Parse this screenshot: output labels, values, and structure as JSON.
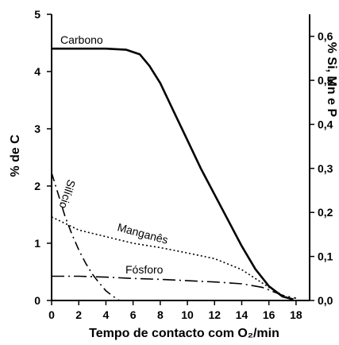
{
  "chart_data": {
    "type": "line",
    "xlabel": "Tempo de contacto com O₂/min",
    "ylabel_left": "% de C",
    "ylabel_right": "% Si, Mn e P",
    "xlim": [
      0,
      19
    ],
    "ylim_left": [
      0,
      5
    ],
    "ylim_right": [
      0,
      0.65
    ],
    "x_ticks": [
      "0",
      "2",
      "4",
      "6",
      "8",
      "10",
      "12",
      "14",
      "16",
      "18"
    ],
    "y_left_ticks": [
      "0",
      "1",
      "2",
      "3",
      "4",
      "5"
    ],
    "y_right_ticks": [
      "0,0",
      "0,1",
      "0,2",
      "0,3",
      "0,4",
      "0,5",
      "0,6"
    ],
    "series": [
      {
        "name": "Carbono",
        "axis": "left",
        "style": "solid",
        "x": [
          0,
          4,
          5.5,
          6.5,
          7.2,
          8,
          9,
          10,
          11,
          12,
          13,
          14,
          15,
          16,
          17,
          17.8
        ],
        "y": [
          4.4,
          4.4,
          4.38,
          4.3,
          4.1,
          3.8,
          3.3,
          2.8,
          2.3,
          1.85,
          1.4,
          0.95,
          0.55,
          0.25,
          0.07,
          0.02
        ]
      },
      {
        "name": "Silício",
        "axis": "right",
        "style": "dashdot",
        "x": [
          0,
          0.5,
          1,
          1.5,
          2,
          2.5,
          3,
          3.5,
          4,
          4.5,
          5
        ],
        "y": [
          0.29,
          0.24,
          0.19,
          0.15,
          0.115,
          0.085,
          0.06,
          0.04,
          0.022,
          0.01,
          0.0
        ]
      },
      {
        "name": "Manganês",
        "axis": "right",
        "style": "dotted",
        "x": [
          0,
          2,
          4,
          6,
          8,
          10,
          12,
          14,
          15,
          16,
          17,
          17.8
        ],
        "y": [
          0.19,
          0.16,
          0.145,
          0.13,
          0.12,
          0.108,
          0.095,
          0.07,
          0.05,
          0.03,
          0.012,
          0.0
        ]
      },
      {
        "name": "Fósforo",
        "axis": "right",
        "style": "longdashdot",
        "x": [
          0,
          2,
          4,
          6,
          8,
          10,
          12,
          14,
          15.5,
          17,
          18
        ],
        "y": [
          0.055,
          0.055,
          0.053,
          0.05,
          0.048,
          0.045,
          0.042,
          0.038,
          0.03,
          0.012,
          0.005
        ]
      }
    ],
    "grid": false,
    "legend": "none"
  }
}
